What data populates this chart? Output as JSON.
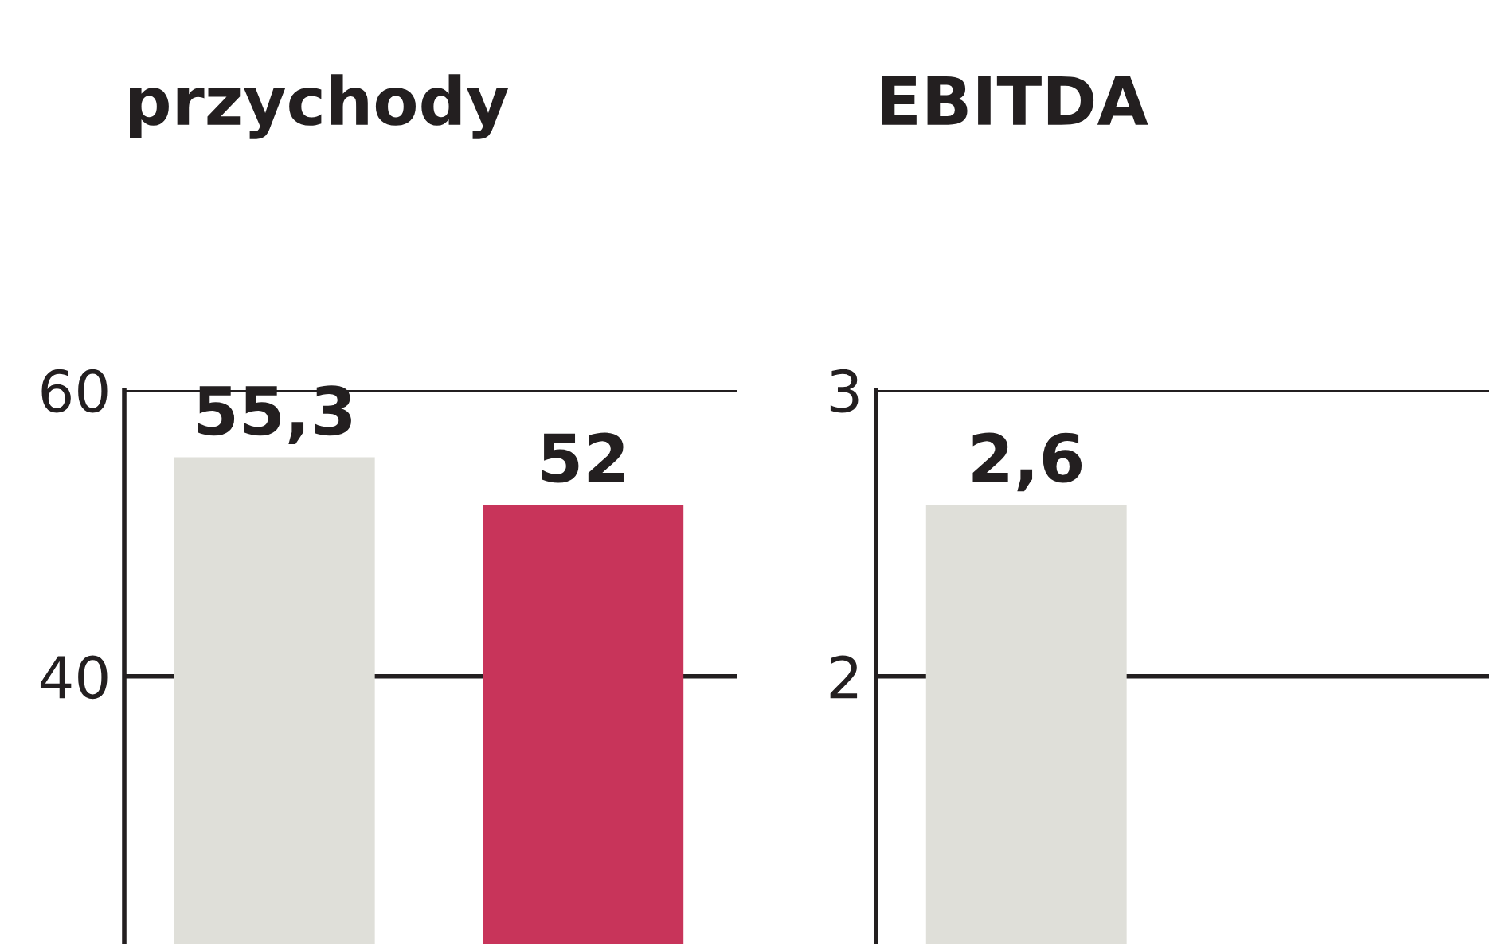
{
  "chart_data": [
    {
      "type": "bar",
      "title": "przychody",
      "categories": [
        null,
        null
      ],
      "values": [
        55.3,
        52
      ],
      "colors": [
        "#dfdfd9",
        "#c8345a"
      ],
      "value_labels": [
        "55,3",
        "52"
      ],
      "ylim": [
        21.3,
        60
      ],
      "yticks": [
        40,
        60
      ],
      "grid": "y"
    },
    {
      "type": "bar",
      "title": "EBITDA",
      "categories": [
        null
      ],
      "values": [
        2.6
      ],
      "colors": [
        "#dfdfd9"
      ],
      "value_labels": [
        "2,6"
      ],
      "ylim": [
        1.065,
        3
      ],
      "yticks": [
        2,
        3
      ],
      "grid": "y"
    }
  ]
}
